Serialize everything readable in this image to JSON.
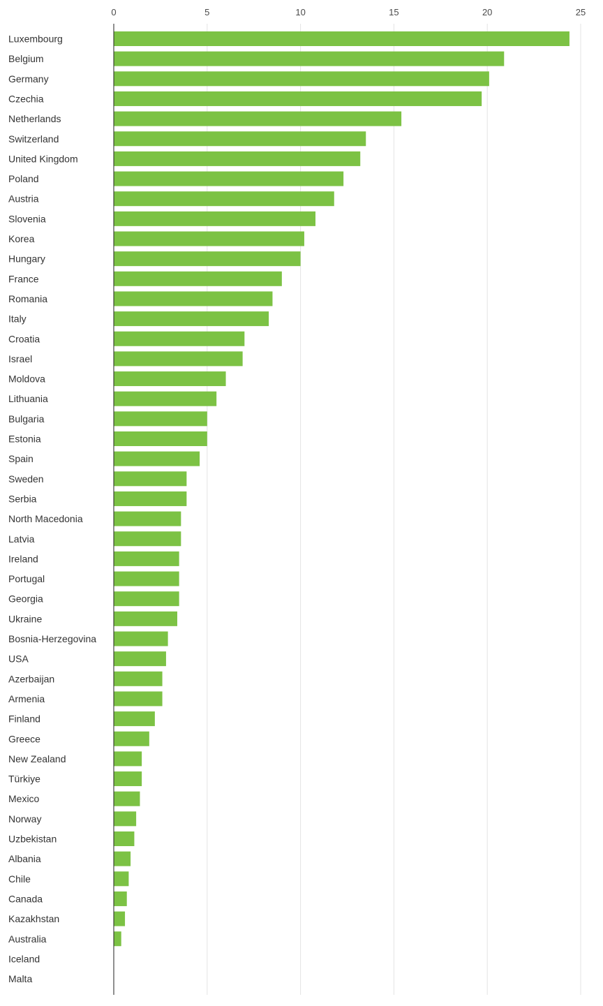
{
  "chart_data": {
    "type": "bar",
    "orientation": "horizontal",
    "title": "",
    "xlabel": "",
    "ylabel": "",
    "xlim": [
      0,
      25
    ],
    "x_ticks": [
      0,
      5,
      10,
      15,
      20,
      25
    ],
    "grid": true,
    "color": "#7cc244",
    "categories": [
      "Luxembourg",
      "Belgium",
      "Germany",
      "Czechia",
      "Netherlands",
      "Switzerland",
      "United Kingdom",
      "Poland",
      "Austria",
      "Slovenia",
      "Korea",
      "Hungary",
      "France",
      "Romania",
      "Italy",
      "Croatia",
      "Israel",
      "Moldova",
      "Lithuania",
      "Bulgaria",
      "Estonia",
      "Spain",
      "Sweden",
      "Serbia",
      "North Macedonia",
      "Latvia",
      "Ireland",
      "Portugal",
      "Georgia",
      "Ukraine",
      "Bosnia-Herzegovina",
      "USA",
      "Azerbaijan",
      "Armenia",
      "Finland",
      "Greece",
      "New Zealand",
      "Türkiye",
      "Mexico",
      "Norway",
      "Uzbekistan",
      "Albania",
      "Chile",
      "Canada",
      "Kazakhstan",
      "Australia",
      "Iceland",
      "Malta"
    ],
    "values": [
      24.4,
      20.9,
      20.1,
      19.7,
      15.4,
      13.5,
      13.2,
      12.3,
      11.8,
      10.8,
      10.2,
      10.0,
      9.0,
      8.5,
      8.3,
      7.0,
      6.9,
      6.0,
      5.5,
      5.0,
      5.0,
      4.6,
      3.9,
      3.9,
      3.6,
      3.6,
      3.5,
      3.5,
      3.5,
      3.4,
      2.9,
      2.8,
      2.6,
      2.6,
      2.2,
      1.9,
      1.5,
      1.5,
      1.4,
      1.2,
      1.1,
      0.9,
      0.8,
      0.7,
      0.6,
      0.4,
      0.0,
      0.0
    ]
  }
}
